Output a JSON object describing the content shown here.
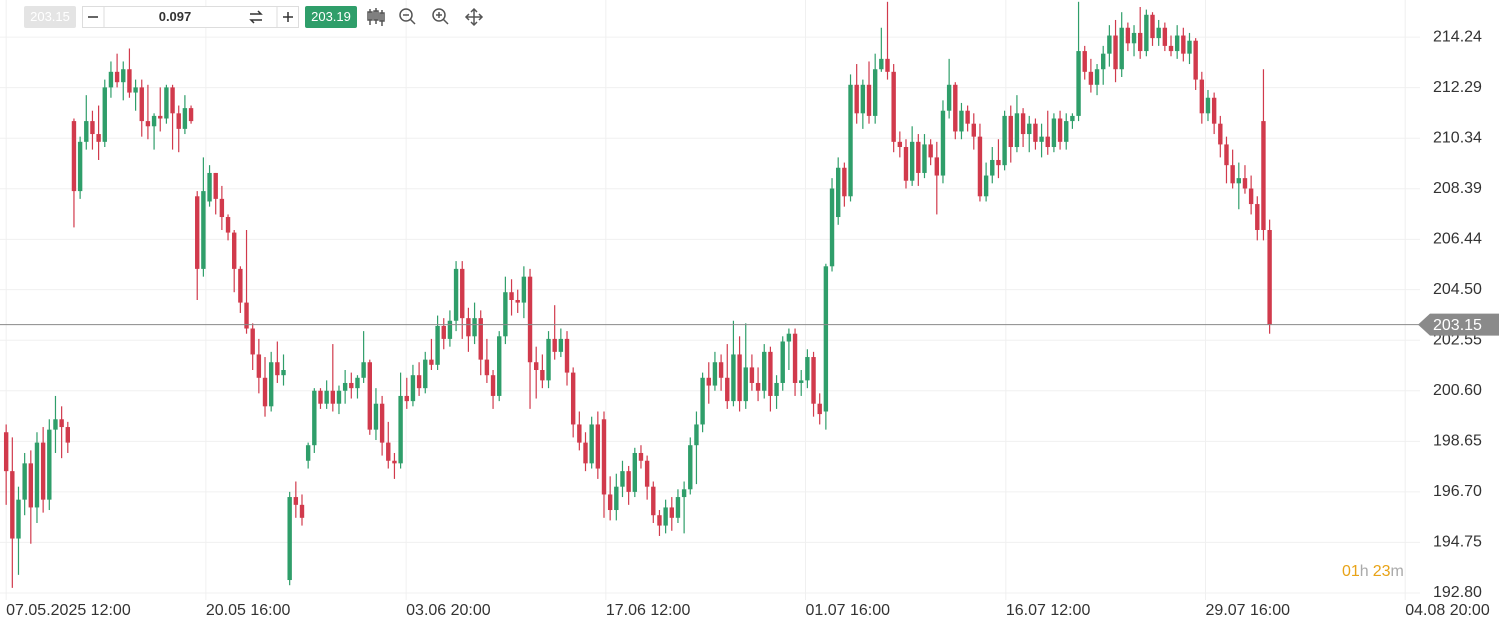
{
  "toolbar": {
    "bid": "203.15",
    "quantity": "0.097",
    "ask": "203.19"
  },
  "chart_data": {
    "type": "candlestick",
    "up_color": "#2f9e6a",
    "down_color": "#d13a4c",
    "grid": true,
    "current_price": 203.15,
    "countdown": [
      "01",
      "h",
      "23",
      "m"
    ],
    "ylim": [
      192.53,
      215.67
    ],
    "yticks": [
      214.24,
      212.29,
      210.34,
      208.39,
      206.44,
      {
        "value": 204.5,
        "label": "204.50"
      },
      202.55,
      {
        "value": 200.6,
        "label": "200.60"
      },
      198.65,
      {
        "value": 196.7,
        "label": "196.70"
      },
      194.75,
      {
        "value": 192.8,
        "label": "192.80"
      }
    ],
    "xlim": [
      -1,
      229.4
    ],
    "xticks": [
      {
        "value": 0,
        "label": "07.05.2025 12:00"
      },
      {
        "value": 32.4,
        "label": "20.05 16:00"
      },
      {
        "value": 64.9,
        "label": "03.06 20:00"
      },
      {
        "value": 97.3,
        "label": "17.06 12:00"
      },
      {
        "value": 129.7,
        "label": "01.07 16:00"
      },
      {
        "value": 162.2,
        "label": "16.07 12:00"
      },
      {
        "value": 194.6,
        "label": "29.07 16:00"
      },
      {
        "value": 227,
        "label": "04.08 20:00"
      }
    ],
    "open": [
      199.0,
      197.5,
      194.9,
      196.4,
      197.8,
      196.1,
      198.6,
      196.4,
      199.1,
      199.5,
      199.2,
      211.0,
      208.3,
      210.2,
      211.0,
      210.5,
      210.2,
      212.3,
      212.9,
      212.5,
      213.0,
      212.1,
      212.3,
      211.0,
      210.8,
      211.2,
      211.1,
      212.3,
      211.3,
      210.7,
      211.5,
      208.1,
      205.3,
      207.9,
      209.0,
      208.0,
      207.3,
      206.7,
      205.3,
      204.0,
      203.0,
      202.0,
      201.1,
      200.0,
      201.7,
      201.2,
      193.3,
      196.5,
      196.2,
      197.9,
      198.5,
      200.6,
      200.1,
      200.6,
      200.1,
      200.6,
      200.9,
      200.7,
      201.1,
      201.7,
      199.1,
      200.1,
      198.6,
      197.9,
      197.8,
      200.4,
      200.2,
      201.2,
      200.7,
      201.8,
      201.6,
      203.1,
      202.6,
      203.3,
      205.3,
      203.4,
      202.7,
      203.4,
      201.8,
      201.2,
      200.4,
      202.7,
      204.4,
      204.1,
      204.0,
      205.0,
      201.7,
      201.4,
      201.0,
      202.6,
      202.1,
      202.6,
      201.3,
      199.3,
      198.6,
      197.8,
      199.3,
      199.5,
      196.6,
      196.0,
      196.9,
      197.5,
      196.7,
      198.2,
      197.9,
      196.9,
      195.8,
      195.4,
      196.1,
      195.7,
      196.5,
      196.8,
      198.5,
      199.3,
      201.1,
      200.8,
      201.7,
      201.1,
      200.2,
      202.0,
      200.2,
      201.5,
      200.9,
      200.6,
      202.1,
      200.4,
      200.9,
      202.5,
      202.8,
      200.9,
      201.0,
      201.9,
      200.1,
      199.8,
      205.4,
      207.3,
      209.2,
      208.1,
      212.4,
      211.3,
      212.4,
      211.2,
      213.0,
      213.4,
      212.9,
      210.2,
      210.0,
      208.7,
      210.2,
      209.0,
      210.1,
      209.6,
      208.9,
      211.4,
      212.4,
      210.6,
      211.4,
      210.9,
      210.4,
      208.1,
      208.9,
      209.5,
      209.3,
      211.2,
      210.0,
      211.3,
      210.5,
      210.9,
      210.2,
      210.4,
      210.0,
      211.1,
      210.2,
      211.0,
      211.2,
      213.7,
      212.9,
      212.4,
      213.0,
      213.6,
      214.3,
      213.0,
      214.6,
      214.0,
      214.4,
      213.7,
      215.1,
      214.2,
      214.6,
      213.9,
      213.7,
      214.3,
      213.6,
      214.1,
      212.6,
      211.3,
      211.9,
      210.9,
      210.1,
      209.3,
      208.6,
      208.8,
      208.4,
      207.8,
      211.0,
      206.8
    ],
    "high": [
      199.3,
      198.8,
      196.9,
      198.2,
      198.3,
      199.0,
      199.2,
      199.5,
      200.4,
      200.0,
      199.4,
      211.1,
      210.4,
      212.0,
      211.4,
      211.6,
      212.6,
      213.3,
      213.6,
      213.3,
      213.8,
      212.6,
      212.6,
      212.4,
      211.3,
      212.3,
      212.4,
      212.4,
      211.6,
      212.0,
      211.6,
      208.3,
      209.6,
      209.3,
      209.0,
      208.5,
      207.4,
      206.8,
      205.4,
      206.8,
      203.2,
      202.6,
      201.9,
      202.1,
      202.5,
      202.0,
      196.7,
      197.1,
      196.6,
      198.6,
      200.7,
      200.7,
      201.0,
      202.4,
      200.8,
      201.4,
      201.3,
      201.2,
      202.9,
      201.8,
      200.7,
      200.4,
      199.4,
      198.2,
      201.3,
      201.1,
      201.6,
      201.7,
      202.1,
      202.6,
      203.5,
      203.4,
      203.7,
      205.6,
      205.6,
      203.8,
      204.0,
      203.7,
      202.6,
      201.4,
      202.9,
      205.0,
      204.9,
      204.5,
      205.4,
      205.3,
      202.3,
      202.0,
      202.9,
      203.9,
      203.0,
      202.9,
      201.5,
      199.8,
      199.0,
      199.6,
      199.8,
      199.8,
      197.3,
      197.4,
      197.9,
      197.7,
      198.4,
      198.5,
      198.1,
      197.1,
      196.0,
      196.4,
      196.5,
      196.8,
      197.1,
      198.8,
      199.8,
      201.3,
      201.7,
      202.1,
      202.0,
      202.4,
      203.3,
      202.7,
      203.2,
      202.0,
      201.5,
      202.4,
      202.3,
      201.2,
      202.7,
      203.0,
      203.0,
      201.4,
      202.2,
      202.1,
      200.5,
      205.5,
      208.8,
      209.6,
      209.4,
      212.8,
      213.2,
      212.6,
      213.3,
      213.6,
      214.6,
      215.6,
      213.2,
      210.6,
      210.3,
      210.8,
      210.5,
      210.5,
      210.3,
      210.2,
      211.8,
      213.4,
      212.5,
      211.7,
      211.6,
      211.3,
      210.9,
      209.4,
      210.0,
      210.3,
      211.4,
      211.6,
      212.0,
      211.5,
      211.2,
      211.1,
      210.9,
      211.4,
      211.3,
      211.4,
      211.3,
      211.3,
      215.6,
      213.9,
      213.4,
      213.2,
      213.9,
      214.7,
      214.9,
      215.2,
      214.8,
      214.7,
      215.4,
      215.3,
      215.2,
      214.9,
      214.8,
      214.3,
      214.7,
      214.6,
      214.4,
      214.2,
      212.9,
      212.2,
      212.1,
      211.2,
      210.4,
      209.9,
      209.4,
      209.3,
      208.9,
      208.1,
      213.0,
      207.2
    ],
    "low": [
      196.2,
      193.0,
      193.5,
      195.8,
      194.7,
      195.5,
      195.9,
      196.0,
      198.2,
      198.0,
      198.2,
      206.9,
      208.0,
      209.9,
      209.9,
      209.5,
      210.0,
      211.9,
      212.3,
      211.8,
      211.9,
      211.4,
      210.4,
      210.3,
      209.9,
      210.6,
      210.9,
      209.9,
      209.8,
      210.5,
      210.9,
      204.1,
      205.0,
      207.7,
      207.4,
      206.8,
      206.4,
      204.4,
      203.6,
      202.8,
      201.4,
      200.5,
      199.6,
      199.8,
      200.9,
      200.8,
      193.1,
      195.7,
      195.4,
      197.6,
      198.2,
      199.9,
      199.9,
      199.8,
      199.7,
      200.1,
      200.3,
      200.3,
      200.9,
      198.9,
      198.7,
      198.1,
      197.6,
      197.2,
      197.6,
      199.9,
      200.0,
      200.4,
      200.5,
      201.4,
      201.4,
      202.2,
      202.3,
      202.9,
      202.6,
      202.1,
      202.4,
      201.2,
      200.9,
      199.9,
      200.2,
      202.4,
      203.5,
      203.6,
      203.4,
      199.9,
      200.3,
      200.7,
      200.7,
      201.8,
      201.9,
      200.8,
      198.8,
      198.3,
      197.5,
      197.6,
      197.2,
      195.7,
      195.6,
      195.6,
      196.5,
      196.2,
      196.5,
      197.6,
      196.4,
      195.5,
      195.0,
      195.1,
      195.2,
      195.5,
      195.1,
      196.6,
      197.0,
      199.0,
      200.1,
      200.6,
      200.6,
      199.9,
      200.0,
      199.8,
      199.9,
      200.6,
      200.2,
      200.3,
      199.8,
      199.9,
      200.6,
      201.4,
      200.4,
      200.4,
      200.7,
      199.6,
      199.3,
      199.1,
      205.2,
      207.0,
      207.7,
      207.9,
      210.9,
      210.7,
      210.9,
      210.9,
      212.9,
      212.6,
      209.8,
      209.6,
      208.4,
      208.5,
      208.5,
      208.8,
      209.3,
      207.4,
      208.6,
      211.1,
      210.3,
      210.3,
      210.6,
      209.9,
      207.9,
      207.9,
      208.6,
      208.8,
      209.1,
      209.4,
      209.8,
      210.0,
      209.8,
      209.9,
      209.6,
      209.7,
      209.8,
      209.9,
      209.9,
      210.7,
      211.0,
      212.6,
      212.1,
      212.0,
      212.4,
      213.1,
      212.5,
      212.7,
      213.7,
      213.5,
      213.4,
      213.5,
      213.9,
      213.9,
      213.7,
      213.5,
      213.4,
      213.3,
      213.2,
      212.2,
      210.9,
      211.0,
      210.5,
      209.6,
      208.6,
      208.4,
      207.6,
      208.2,
      207.4,
      206.4,
      206.4,
      202.8
    ],
    "close": [
      197.5,
      194.9,
      196.4,
      197.8,
      196.1,
      198.6,
      196.4,
      199.1,
      199.5,
      199.2,
      198.6,
      208.3,
      210.2,
      211.0,
      210.5,
      210.2,
      212.3,
      212.9,
      212.5,
      213.0,
      212.1,
      212.3,
      211.0,
      210.8,
      211.2,
      211.1,
      212.3,
      211.3,
      210.7,
      211.5,
      211.0,
      205.3,
      208.3,
      209.0,
      208.0,
      207.3,
      206.7,
      205.3,
      204.0,
      203.0,
      202.0,
      201.1,
      200.0,
      201.7,
      201.2,
      201.4,
      196.5,
      196.2,
      195.7,
      198.5,
      200.6,
      200.1,
      200.6,
      200.1,
      200.6,
      200.9,
      200.7,
      201.1,
      201.7,
      199.1,
      200.1,
      198.6,
      197.9,
      197.8,
      200.4,
      200.2,
      201.2,
      200.7,
      201.8,
      201.6,
      203.1,
      202.6,
      203.3,
      205.3,
      203.4,
      202.7,
      203.4,
      201.8,
      201.2,
      200.4,
      202.7,
      204.4,
      204.1,
      204.0,
      205.0,
      201.7,
      201.4,
      201.0,
      202.6,
      202.1,
      202.6,
      201.3,
      199.3,
      198.6,
      197.8,
      199.3,
      197.6,
      196.6,
      196.0,
      196.9,
      197.5,
      196.7,
      198.2,
      197.9,
      196.9,
      195.8,
      195.4,
      196.1,
      195.7,
      196.5,
      196.8,
      198.5,
      199.3,
      201.1,
      200.8,
      201.7,
      201.1,
      200.2,
      202.0,
      200.2,
      201.5,
      200.9,
      200.6,
      202.1,
      200.4,
      200.9,
      202.5,
      202.8,
      200.9,
      201.0,
      201.9,
      200.1,
      199.7,
      205.4,
      208.4,
      209.2,
      208.1,
      212.4,
      211.3,
      212.4,
      211.2,
      213.0,
      213.4,
      212.9,
      210.2,
      210.0,
      208.7,
      210.2,
      209.0,
      210.1,
      209.6,
      208.9,
      211.4,
      212.4,
      210.6,
      211.4,
      210.9,
      210.4,
      208.1,
      208.9,
      209.5,
      209.3,
      211.2,
      210.0,
      211.3,
      210.5,
      210.9,
      210.2,
      210.4,
      210.0,
      211.1,
      210.2,
      211.0,
      211.2,
      213.7,
      212.9,
      212.4,
      213.0,
      213.6,
      214.3,
      213.0,
      214.6,
      214.0,
      214.4,
      213.7,
      215.1,
      214.2,
      214.6,
      213.9,
      213.7,
      214.3,
      213.6,
      214.1,
      212.6,
      211.3,
      211.9,
      210.9,
      210.1,
      209.3,
      208.6,
      208.8,
      208.4,
      207.8,
      206.8,
      206.8,
      203.15
    ]
  }
}
